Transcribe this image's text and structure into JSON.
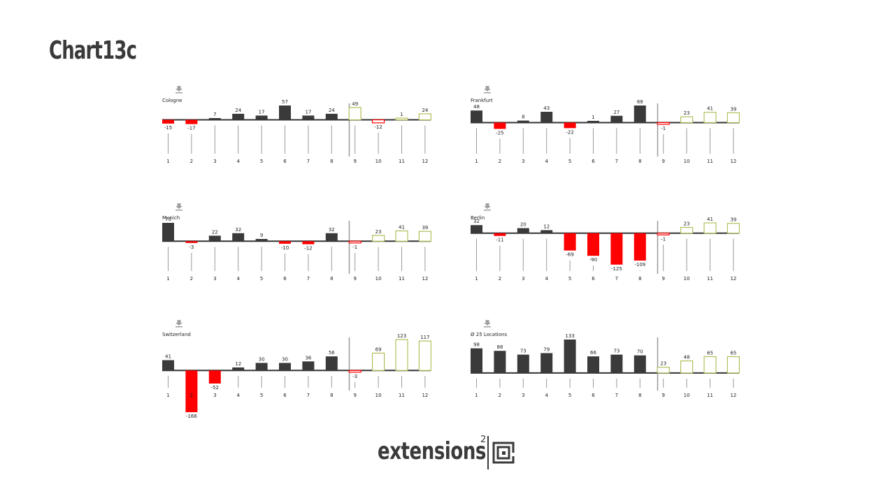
{
  "page": {
    "title": "Chart13c"
  },
  "logo": {
    "text": "extensions",
    "superscript": "2"
  },
  "colors": {
    "actual": "#3a3a3a",
    "negative": "#ff0000",
    "forecast_outline": "#b5bd5b",
    "divider": "#9a9a9a",
    "axis": "#333333"
  },
  "chart_data": [
    {
      "type": "bar",
      "title": "Cologne",
      "categories": [
        "1",
        "2",
        "3",
        "4",
        "5",
        "6",
        "7",
        "8",
        "9",
        "10",
        "11",
        "12"
      ],
      "values": [
        -15,
        -17,
        7,
        24,
        17,
        57,
        17,
        24,
        49,
        -12,
        1,
        24
      ],
      "forecast_from_month": 9
    },
    {
      "type": "bar",
      "title": "Frankfurt",
      "categories": [
        "1",
        "2",
        "3",
        "4",
        "5",
        "6",
        "7",
        "8",
        "9",
        "10",
        "11",
        "12"
      ],
      "values": [
        48,
        -25,
        8,
        43,
        -22,
        1,
        27,
        68,
        -1,
        23,
        41,
        39
      ],
      "forecast_from_month": 9
    },
    {
      "type": "bar",
      "title": "Munich",
      "categories": [
        "1",
        "2",
        "3",
        "4",
        "5",
        "6",
        "7",
        "8",
        "9",
        "10",
        "11",
        "12"
      ],
      "values": [
        73,
        -3,
        22,
        32,
        9,
        -10,
        -12,
        32,
        -1,
        23,
        41,
        39
      ],
      "forecast_from_month": 9
    },
    {
      "type": "bar",
      "title": "Berlin",
      "categories": [
        "1",
        "2",
        "3",
        "4",
        "5",
        "6",
        "7",
        "8",
        "9",
        "10",
        "11",
        "12"
      ],
      "values": [
        32,
        -11,
        20,
        12,
        -69,
        -90,
        -125,
        -109,
        -1,
        23,
        41,
        39
      ],
      "forecast_from_month": 9
    },
    {
      "type": "bar",
      "title": "Switzerland",
      "categories": [
        "1",
        "2",
        "3",
        "4",
        "5",
        "6",
        "7",
        "8",
        "9",
        "10",
        "11",
        "12"
      ],
      "values": [
        41,
        -166,
        -52,
        12,
        30,
        30,
        36,
        56,
        -3,
        69,
        123,
        117
      ],
      "forecast_from_month": 9
    },
    {
      "type": "bar",
      "title": "Ø 25 Locations",
      "categories": [
        "1",
        "2",
        "3",
        "4",
        "5",
        "6",
        "7",
        "8",
        "9",
        "10",
        "11",
        "12"
      ],
      "values": [
        98,
        88,
        73,
        79,
        133,
        66,
        73,
        70,
        23,
        48,
        65,
        65
      ],
      "forecast_from_month": 9
    }
  ]
}
